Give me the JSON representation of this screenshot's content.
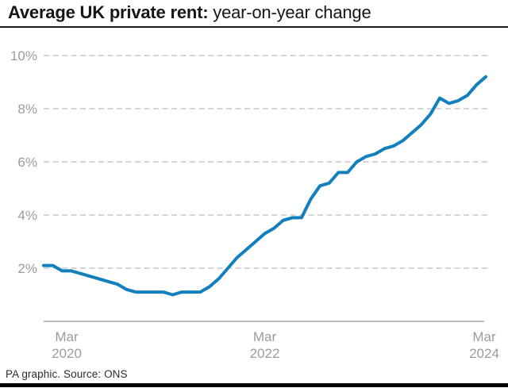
{
  "title": {
    "bold": "Average UK private rent:",
    "regular": " year-on-year change"
  },
  "footer": {
    "source": "PA graphic. Source: ONS"
  },
  "colors": {
    "line": "#1180bc",
    "grid": "#c7c7c7",
    "axis": "#a8a8a8",
    "tick_text": "#9c9c9c",
    "title_text": "#161616",
    "footer_text": "#2b2b2b",
    "footer_bar": "#000000",
    "background": "#ffffff"
  },
  "chart_data": {
    "type": "line",
    "title": "Average UK private rent: year-on-year change",
    "unit": "%",
    "legend": "none",
    "grid": "dashed-horizontal",
    "ylim": [
      0,
      10.5
    ],
    "y_ticks": [
      2,
      4,
      6,
      8,
      10
    ],
    "y_tick_suffix": "%",
    "x_tick_labels": [
      [
        "Mar",
        "2020"
      ],
      [
        "Mar",
        "2022"
      ],
      [
        "Mar",
        "2024"
      ]
    ],
    "x_tick_month_index": [
      0,
      24,
      48
    ],
    "x": [
      "Mar 2020",
      "Apr 2020",
      "May 2020",
      "Jun 2020",
      "Jul 2020",
      "Aug 2020",
      "Sep 2020",
      "Oct 2020",
      "Nov 2020",
      "Dec 2020",
      "Jan 2021",
      "Feb 2021",
      "Mar 2021",
      "Apr 2021",
      "May 2021",
      "Jun 2021",
      "Jul 2021",
      "Aug 2021",
      "Sep 2021",
      "Oct 2021",
      "Nov 2021",
      "Dec 2021",
      "Jan 2022",
      "Feb 2022",
      "Mar 2022",
      "Apr 2022",
      "May 2022",
      "Jun 2022",
      "Jul 2022",
      "Aug 2022",
      "Sep 2022",
      "Oct 2022",
      "Nov 2022",
      "Dec 2022",
      "Jan 2023",
      "Feb 2023",
      "Mar 2023",
      "Apr 2023",
      "May 2023",
      "Jun 2023",
      "Jul 2023",
      "Aug 2023",
      "Sep 2023",
      "Oct 2023",
      "Nov 2023",
      "Dec 2023",
      "Jan 2024",
      "Feb 2024",
      "Mar 2024"
    ],
    "values": [
      2.1,
      2.1,
      1.9,
      1.9,
      1.8,
      1.7,
      1.6,
      1.5,
      1.4,
      1.2,
      1.1,
      1.1,
      1.1,
      1.1,
      1.0,
      1.1,
      1.1,
      1.1,
      1.3,
      1.6,
      2.0,
      2.4,
      2.7,
      3.0,
      3.3,
      3.5,
      3.8,
      3.9,
      3.9,
      4.6,
      5.1,
      5.2,
      5.6,
      5.6,
      6.0,
      6.2,
      6.3,
      6.5,
      6.6,
      6.8,
      7.1,
      7.4,
      7.8,
      8.4,
      8.2,
      8.3,
      8.5,
      8.9,
      9.2
    ]
  }
}
